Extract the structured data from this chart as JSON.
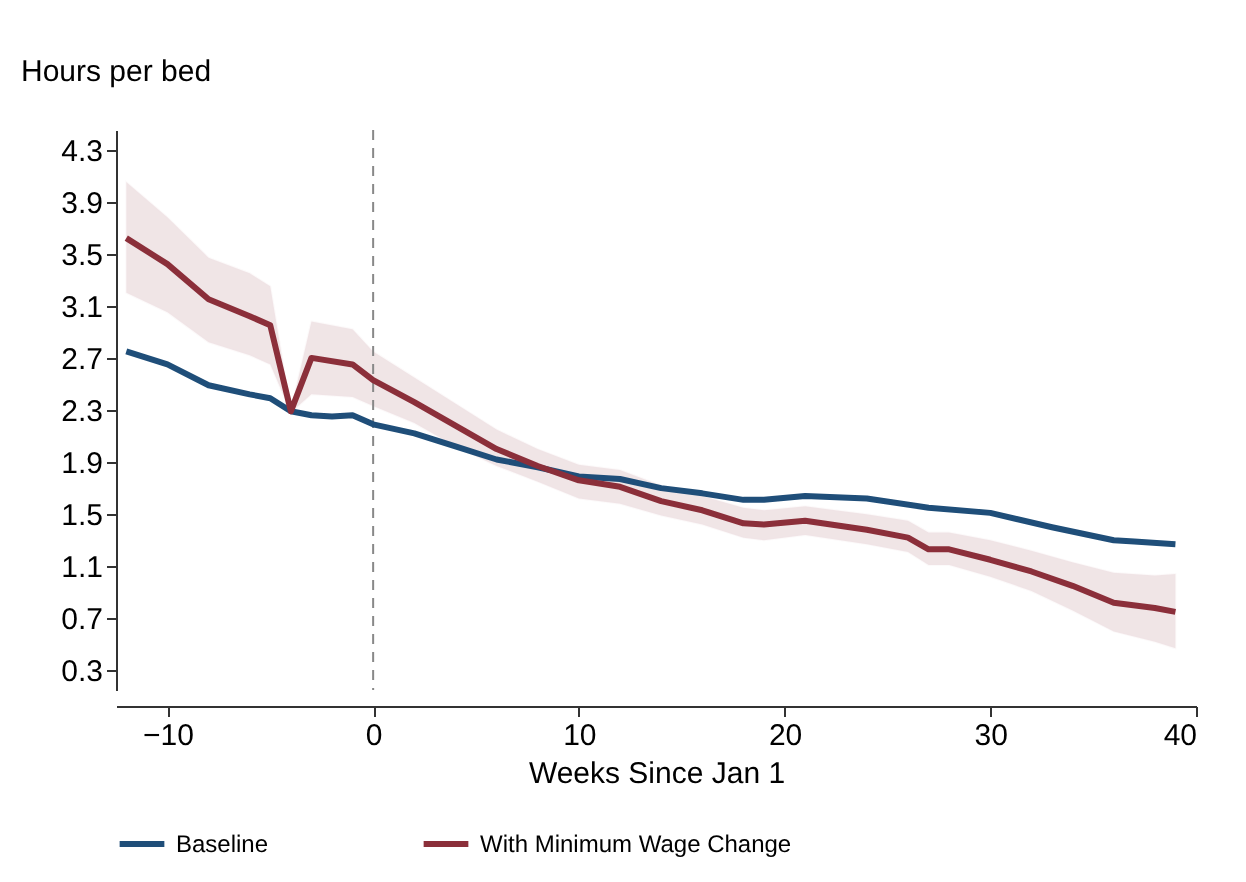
{
  "chart_data": {
    "type": "line",
    "xlabel": "Weeks Since Jan 1",
    "ylabel": "Hours per bed",
    "xlim": [
      -12.5,
      40
    ],
    "xticks": [
      -10,
      0,
      10,
      20,
      30,
      40
    ],
    "ylim": [
      0.15,
      4.45
    ],
    "yticks": [
      0.3,
      0.7,
      1.1,
      1.5,
      1.9,
      2.3,
      2.7,
      3.1,
      3.5,
      3.9,
      4.3
    ],
    "grid": false,
    "legend": "bottom",
    "marker": "none",
    "line_style": "solid",
    "ref_lines": [
      {
        "axis": "x",
        "value": 0,
        "color": "#888888",
        "line_style": "dashed"
      }
    ],
    "series": [
      {
        "name": "Baseline",
        "color": "#1f4e79",
        "x": [
          -12,
          -10,
          -8,
          -6,
          -5,
          -4,
          -3,
          -2,
          -1,
          0,
          2,
          4,
          6,
          8,
          10,
          12,
          14,
          16,
          18,
          19,
          21,
          24,
          27,
          30,
          33,
          36,
          37,
          39
        ],
        "values": [
          2.75,
          2.65,
          2.49,
          2.42,
          2.39,
          2.29,
          2.26,
          2.25,
          2.26,
          2.19,
          2.12,
          2.02,
          1.92,
          1.86,
          1.79,
          1.77,
          1.7,
          1.66,
          1.61,
          1.61,
          1.64,
          1.62,
          1.55,
          1.51,
          1.4,
          1.3,
          1.29,
          1.27
        ]
      },
      {
        "name": "With Minimum Wage Change",
        "color": "#8b2f3a",
        "x": [
          -12,
          -10,
          -8,
          -6,
          -5,
          -4,
          -3,
          -1,
          0,
          2,
          4,
          6,
          8,
          10,
          12,
          14,
          16,
          18,
          19,
          21,
          24,
          26,
          27,
          28,
          30,
          32,
          34,
          36,
          38,
          39
        ],
        "values": [
          3.62,
          3.42,
          3.15,
          3.02,
          2.95,
          2.29,
          2.7,
          2.65,
          2.53,
          2.36,
          2.18,
          2.0,
          1.87,
          1.76,
          1.71,
          1.6,
          1.53,
          1.43,
          1.42,
          1.45,
          1.38,
          1.32,
          1.23,
          1.23,
          1.15,
          1.06,
          0.95,
          0.82,
          0.78,
          0.75
        ],
        "lower": [
          3.2,
          3.05,
          2.82,
          2.72,
          2.65,
          2.28,
          2.42,
          2.4,
          2.33,
          2.2,
          2.02,
          1.87,
          1.75,
          1.62,
          1.58,
          1.49,
          1.42,
          1.32,
          1.3,
          1.34,
          1.27,
          1.21,
          1.11,
          1.11,
          1.02,
          0.91,
          0.76,
          0.6,
          0.52,
          0.47
        ],
        "upper": [
          4.05,
          3.78,
          3.47,
          3.35,
          3.25,
          2.3,
          2.98,
          2.92,
          2.75,
          2.55,
          2.35,
          2.15,
          2.0,
          1.88,
          1.84,
          1.72,
          1.64,
          1.55,
          1.53,
          1.56,
          1.5,
          1.45,
          1.36,
          1.36,
          1.3,
          1.22,
          1.13,
          1.05,
          1.03,
          1.04
        ]
      }
    ]
  }
}
